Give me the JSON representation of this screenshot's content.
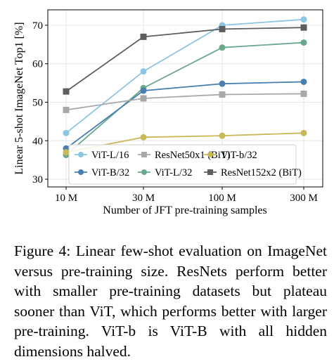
{
  "chart_data": {
    "type": "line",
    "x": [
      "10 M",
      "30 M",
      "100 M",
      "300 M"
    ],
    "xlabel": "Number of JFT pre-training samples",
    "ylabel": "Linear 5-shot ImageNet Top1 [%]",
    "ylim": [
      28,
      74
    ],
    "yticks": [
      30,
      40,
      50,
      60,
      70
    ],
    "xscale": "log",
    "grid": true,
    "legend": "lower-right",
    "series": [
      {
        "name": "ViT-L/16",
        "color": "#8ec5e3",
        "marker": "circle",
        "values": [
          42.0,
          58.0,
          70.0,
          71.5
        ]
      },
      {
        "name": "ViT-L/32",
        "color": "#6aa98e",
        "marker": "circle",
        "values": [
          36.3,
          53.7,
          64.2,
          65.5
        ]
      },
      {
        "name": "ViT-B/32",
        "color": "#4a80b0",
        "marker": "circle",
        "values": [
          38.0,
          53.0,
          54.8,
          55.3
        ]
      },
      {
        "name": "ViT-b/32",
        "color": "#c8b856",
        "marker": "circle",
        "values": [
          37.0,
          40.9,
          41.3,
          42.0
        ]
      },
      {
        "name": "ResNet50x1 (BiT)",
        "color": "#a8a8a8",
        "marker": "square",
        "values": [
          48.0,
          51.0,
          52.0,
          52.2
        ]
      },
      {
        "name": "ResNet152x2 (BiT)",
        "color": "#5e5e5e",
        "marker": "square",
        "values": [
          52.8,
          67.0,
          69.0,
          69.4
        ]
      }
    ]
  },
  "caption": "Figure 4: Linear few-shot evaluation on ImageNet versus pre-training size. ResNets perform better with smaller pre-training datasets but plateau sooner than ViT, which performs better with larger pre-training. ViT-b is ViT-B with all hidden dimensions halved."
}
